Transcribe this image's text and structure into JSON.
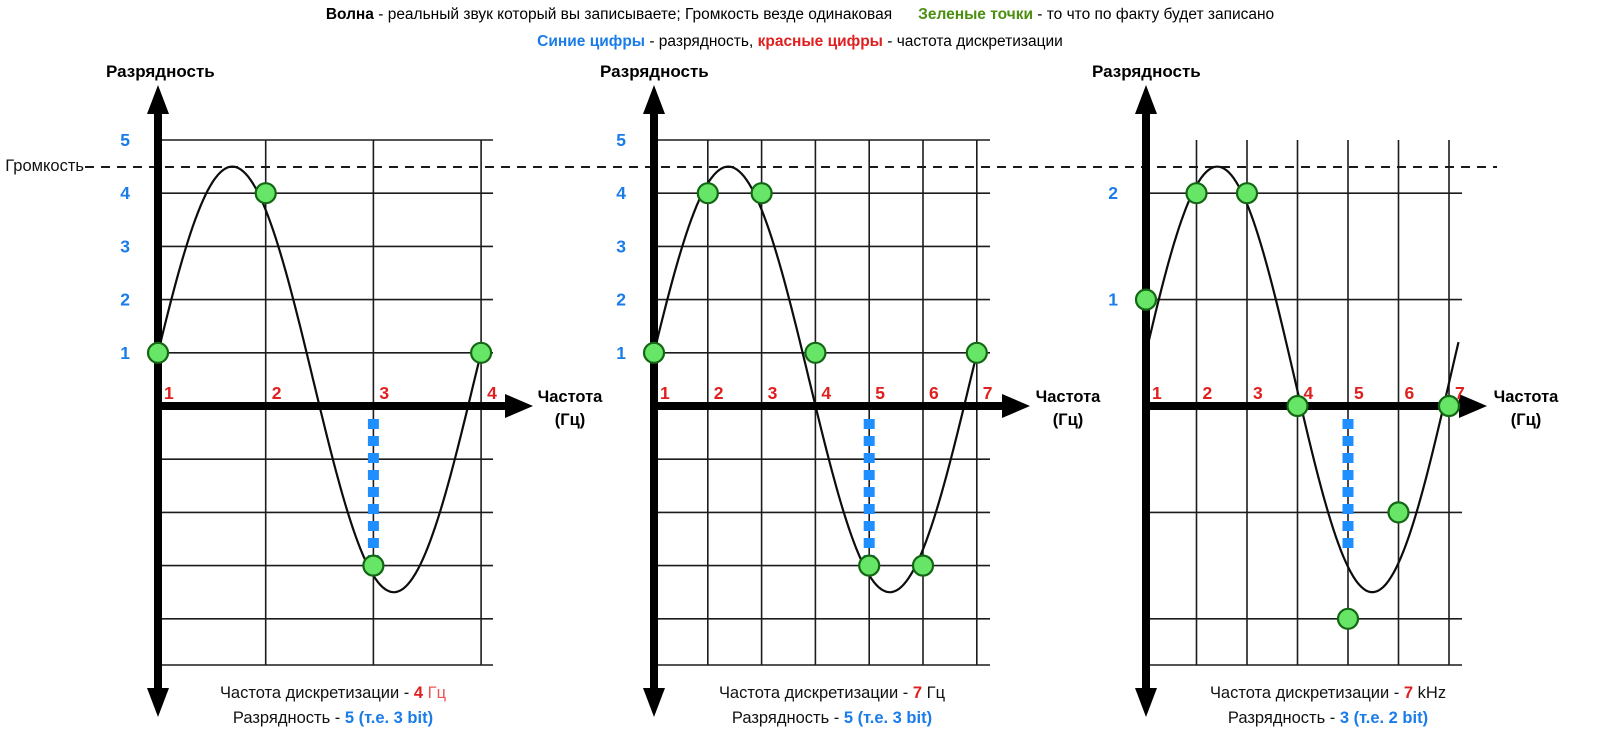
{
  "header": {
    "wave_term": "Волна",
    "wave_desc": " - реальный звук который вы записываете; Громкость везде одинаковая",
    "green_term": "Зеленые точки",
    "green_desc": " - то что по факту будет записано",
    "blue_term": "Синие цифры",
    "blue_desc": " - разрядность, ",
    "red_term": "красные цифры",
    "red_desc": " - частота дискретизации"
  },
  "volume_label": "Громкость",
  "colors": {
    "blue": "#1a7ce8",
    "blue_square": "#1f8fff",
    "red": "#e01f1f",
    "red_light": "#e85555",
    "green_dot_fill": "#66e566",
    "green_dot_stroke": "#136613",
    "green_text": "#4a8f0f",
    "grid": "#1c1c1c",
    "axis": "#000000",
    "wave": "#0d0d0d"
  },
  "chart_data": [
    {
      "type": "line",
      "y_axis_label": "Разрядность",
      "x_axis_label": "Частота\n(Гц)",
      "x_ticks": [
        "1",
        "2",
        "3",
        "4"
      ],
      "y_ticks": [
        {
          "label": "5",
          "level": 5
        },
        {
          "label": "4",
          "level": 4
        },
        {
          "label": "3",
          "level": 3
        },
        {
          "label": "2",
          "level": 2
        },
        {
          "label": "1",
          "level": 1
        }
      ],
      "grid_levels": [
        5,
        4,
        3,
        2,
        1,
        -1,
        -2,
        -3,
        -4
      ],
      "wave": {
        "start_level": 1,
        "peak": 4.5,
        "min": -3.5,
        "periods": 1
      },
      "samples": [
        [
          1,
          1
        ],
        [
          2,
          4
        ],
        [
          3,
          -3
        ],
        [
          4,
          1
        ]
      ],
      "sample_line_x": 3,
      "sampling_rate": 4,
      "rate_unit": "Гц",
      "depth_levels": 5,
      "depth_bits": 3,
      "caption": {
        "freq_label": "Частота дискретизации - ",
        "freq_value": "4",
        "freq_unit": " Гц",
        "depth_label": "Разрядность - ",
        "depth_value": "5 (т.е. 3 bit)"
      }
    },
    {
      "type": "line",
      "y_axis_label": "Разрядность",
      "x_axis_label": "Частота\n(Гц)",
      "x_ticks": [
        "1",
        "2",
        "3",
        "4",
        "5",
        "6",
        "7"
      ],
      "y_ticks": [
        {
          "label": "5",
          "level": 5
        },
        {
          "label": "4",
          "level": 4
        },
        {
          "label": "3",
          "level": 3
        },
        {
          "label": "2",
          "level": 2
        },
        {
          "label": "1",
          "level": 1
        }
      ],
      "grid_levels": [
        5,
        4,
        3,
        2,
        1,
        -1,
        -2,
        -3,
        -4
      ],
      "wave": {
        "start_level": 1,
        "peak": 4.5,
        "min": -3.5,
        "periods": 1
      },
      "samples": [
        [
          1,
          1
        ],
        [
          2,
          4
        ],
        [
          3,
          4
        ],
        [
          4,
          1
        ],
        [
          5,
          -3
        ],
        [
          6,
          -3
        ],
        [
          7,
          1
        ]
      ],
      "sample_line_x": 5,
      "sampling_rate": 7,
      "rate_unit": "Гц",
      "depth_levels": 5,
      "depth_bits": 3,
      "caption": {
        "freq_label": "Частота дискретизации - ",
        "freq_value": "7",
        "freq_unit": " Гц",
        "depth_label": "Разрядность - ",
        "depth_value": "5 (т.е. 3 bit)"
      }
    },
    {
      "type": "line",
      "y_axis_label": "Разрядность",
      "x_axis_label": "Частота\n(Гц)",
      "x_ticks": [
        "1",
        "2",
        "3",
        "4",
        "5",
        "6",
        "7"
      ],
      "y_ticks": [
        {
          "label": "2",
          "level": 4
        },
        {
          "label": "1",
          "level": 2
        }
      ],
      "grid_levels": [
        4,
        2,
        -2,
        -4
      ],
      "wave": {
        "start_level": 1,
        "peak": 4.5,
        "min": -3.5,
        "periods": 1
      },
      "samples": [
        [
          1,
          2
        ],
        [
          2,
          4
        ],
        [
          3,
          4
        ],
        [
          4,
          0
        ],
        [
          5,
          -4
        ],
        [
          6,
          -2
        ],
        [
          7,
          0
        ]
      ],
      "sample_line_x": 5,
      "sampling_rate": 7,
      "rate_unit": "kHz",
      "depth_levels": 3,
      "depth_bits": 2,
      "caption": {
        "freq_label": "Частота дискретизации - ",
        "freq_value": "7",
        "freq_unit": " kHz",
        "depth_label": "Разрядность - ",
        "depth_value": "3 (т.е. 2 bit)"
      }
    }
  ]
}
